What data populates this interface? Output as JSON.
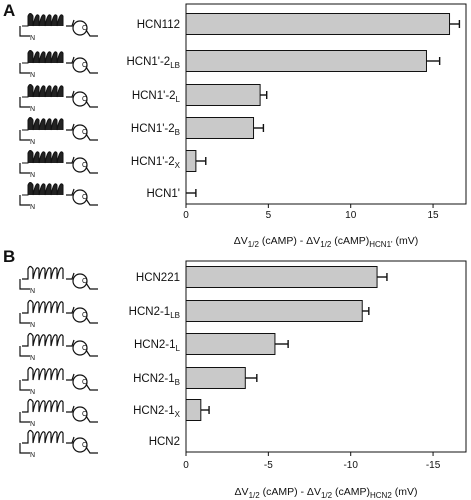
{
  "chart_data": [
    {
      "panel": "A",
      "type": "bar",
      "orientation": "horizontal",
      "categories": [
        {
          "base": "HCN112",
          "sub": ""
        },
        {
          "base": "HCN1'-2",
          "sub": "LB"
        },
        {
          "base": "HCN1'-2",
          "sub": "L"
        },
        {
          "base": "HCN1'-2",
          "sub": "B"
        },
        {
          "base": "HCN1'-2",
          "sub": "X"
        },
        {
          "base": "HCN1'",
          "sub": ""
        }
      ],
      "values": [
        16.0,
        14.6,
        4.5,
        4.1,
        0.6,
        0.0
      ],
      "errors": [
        0.6,
        0.8,
        0.4,
        0.6,
        0.6,
        0.6
      ],
      "xlim": [
        0,
        17
      ],
      "xticks": [
        0,
        5,
        10,
        15
      ],
      "xtick_labels": [
        "0",
        "5",
        "10",
        "15"
      ],
      "xlabel_parts": [
        {
          "t": "ΔV",
          "s": false
        },
        {
          "t": "1/2",
          "s": true
        },
        {
          "t": " (cAMP) - ΔV",
          "s": false
        },
        {
          "t": "1/2",
          "s": true
        },
        {
          "t": " (cAMP)",
          "s": false
        },
        {
          "t": "HCN1'",
          "s": true
        },
        {
          "t": "  (mV)",
          "s": false
        }
      ],
      "cartoon_style": [
        "dark-dark",
        "dark-dark",
        "dark-dark",
        "dark-dark",
        "dark-dark",
        "dark-dark"
      ]
    },
    {
      "panel": "B",
      "type": "bar",
      "orientation": "horizontal",
      "categories": [
        {
          "base": "HCN221",
          "sub": ""
        },
        {
          "base": "HCN2-1",
          "sub": "LB"
        },
        {
          "base": "HCN2-1",
          "sub": "L"
        },
        {
          "base": "HCN2-1",
          "sub": "B"
        },
        {
          "base": "HCN2-1",
          "sub": "X"
        },
        {
          "base": "HCN2",
          "sub": ""
        }
      ],
      "values": [
        -11.6,
        -10.7,
        -5.4,
        -3.6,
        -0.9,
        0.0
      ],
      "errors": [
        0.6,
        0.4,
        0.8,
        0.7,
        0.5,
        0.0
      ],
      "xlim": [
        0,
        -17
      ],
      "xticks": [
        0,
        -5,
        -10,
        -15
      ],
      "xtick_labels": [
        "0",
        "-5",
        "-10",
        "-15"
      ],
      "xlabel_parts": [
        {
          "t": "ΔV",
          "s": false
        },
        {
          "t": "1/2",
          "s": true
        },
        {
          "t": " (cAMP) - ΔV",
          "s": false
        },
        {
          "t": "1/2",
          "s": true
        },
        {
          "t": " (cAMP)",
          "s": false
        },
        {
          "t": "HCN2",
          "s": true
        },
        {
          "t": "  (mV)",
          "s": false
        }
      ],
      "cartoon_style": [
        "light-dark",
        "light-dark",
        "light-dark",
        "light-dark",
        "light-dark",
        "light-light"
      ]
    }
  ],
  "cartoon_text": {
    "n": "N",
    "c": "C"
  },
  "colors": {
    "bar_fill": "#c9c9c9",
    "ink": "#111111"
  }
}
